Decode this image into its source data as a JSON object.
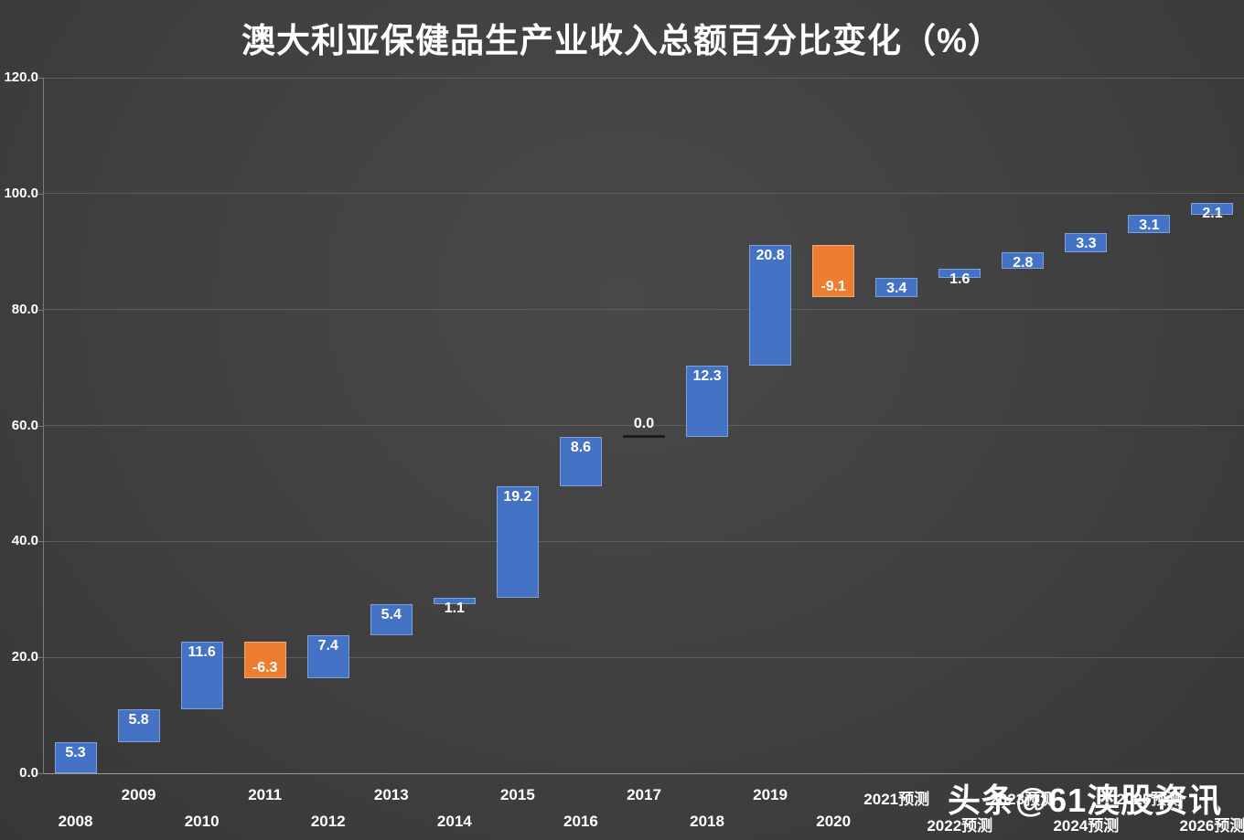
{
  "title": "澳大利亚保健品生产业收入总额百分比变化（%）",
  "watermark": "头条@61澳股资讯",
  "colors": {
    "bg1": "#494949",
    "bg2": "#3f3f3f",
    "increase": "#4472c4",
    "decrease": "#ed7d31",
    "grid": "#5d5d5d",
    "axis": "#9a9a9a",
    "axis2": "#7a7a7a",
    "zeroline": "#1c1c1c",
    "text": "#ffffff"
  },
  "chart_data": {
    "type": "bar",
    "subtype": "waterfall",
    "title": "澳大利亚保健品生产业收入总额百分比变化（%）",
    "categories": [
      "2008",
      "2009",
      "2010",
      "2011",
      "2012",
      "2013",
      "2014",
      "2015",
      "2016",
      "2017",
      "2018",
      "2019",
      "2020",
      "2021预测",
      "2022预测",
      "2023预测",
      "2024预测",
      "2025预测",
      "2026预测"
    ],
    "values": [
      5.3,
      5.8,
      11.6,
      -6.3,
      7.4,
      5.4,
      1.1,
      19.2,
      8.6,
      0.0,
      12.3,
      20.8,
      -9.1,
      3.4,
      1.6,
      2.8,
      3.3,
      3.1,
      2.1
    ],
    "cumulative": [
      5.3,
      11.1,
      22.7,
      16.4,
      23.8,
      29.2,
      30.3,
      49.5,
      58.1,
      58.1,
      70.4,
      91.2,
      82.1,
      85.5,
      87.1,
      89.9,
      93.2,
      96.3,
      98.4
    ],
    "y_axis_ticks": [
      "0.0",
      "20.0",
      "40.0",
      "60.0",
      "80.0",
      "100.0",
      "120.0"
    ],
    "ylim": [
      0,
      120
    ],
    "grid": true,
    "legend": "none",
    "increase_color": "#4472c4",
    "decrease_color": "#ed7d31"
  }
}
